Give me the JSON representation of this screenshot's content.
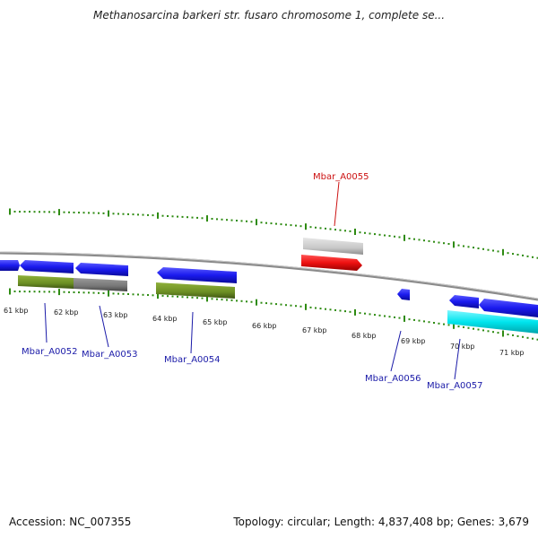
{
  "header": {
    "title": "Methanosarcina barkeri str. fusaro chromosome 1, complete se..."
  },
  "footer": {
    "accession": "Accession: NC_007355",
    "topology": "Topology: circular; Length: 4,837,408 bp; Genes: 3,679"
  },
  "scale": {
    "ticks": [
      {
        "label": "61 kbp"
      },
      {
        "label": "62 kbp"
      },
      {
        "label": "63 kbp"
      },
      {
        "label": "64 kbp"
      },
      {
        "label": "65 kbp"
      },
      {
        "label": "66 kbp"
      },
      {
        "label": "67 kbp"
      },
      {
        "label": "68 kbp"
      },
      {
        "label": "69 kbp"
      },
      {
        "label": "70 kbp"
      },
      {
        "label": "71 kbp"
      }
    ]
  },
  "genes": [
    {
      "name": "Mbar_A0052",
      "color": "#1a1aa8"
    },
    {
      "name": "Mbar_A0053",
      "color": "#1a1aa8"
    },
    {
      "name": "Mbar_A0054",
      "color": "#1a1aa8"
    },
    {
      "name": "Mbar_A0055",
      "color": "#cc1111"
    },
    {
      "name": "Mbar_A0056",
      "color": "#1a1aa8"
    },
    {
      "name": "Mbar_A0057",
      "color": "#1a1aa8"
    }
  ],
  "colors": {
    "ticks": "#2e8b12",
    "backbone": "#8a8a8a",
    "cds_blue": "#1a1aee",
    "gene_olive": "#6b8e23",
    "gene_gray": "#777777",
    "gene_lightgray": "#c8c8c8",
    "gene_red": "#ee1111",
    "gene_cyan": "#00e5ee"
  }
}
